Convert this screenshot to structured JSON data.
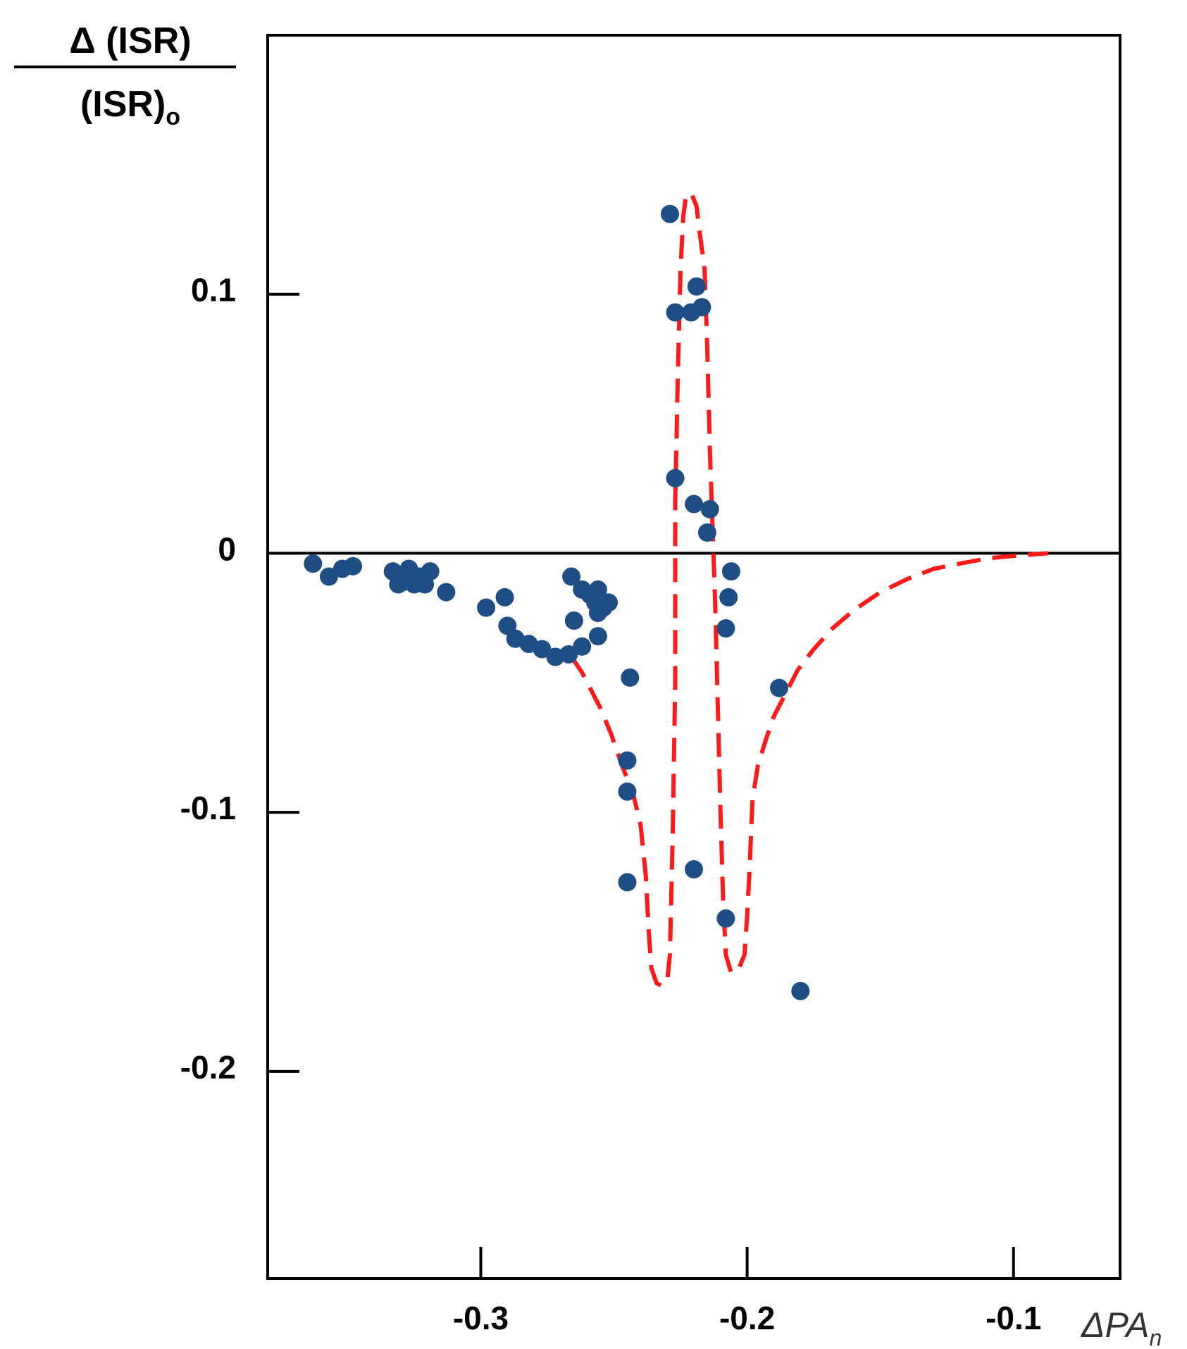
{
  "chart_data": {
    "type": "scatter",
    "title": "",
    "ylabel_numerator": "Δ (ISR)",
    "ylabel_denominator": "(ISR)",
    "ylabel_denominator_sub": "o",
    "xlabel": "ΔPA",
    "xlabel_sub": "n",
    "xlim": [
      -0.38,
      -0.06
    ],
    "ylim": [
      -0.28,
      0.2
    ],
    "x_ticks": [
      {
        "value": -0.3,
        "label": "-0.3"
      },
      {
        "value": -0.2,
        "label": "-0.2"
      },
      {
        "value": -0.1,
        "label": "-0.1"
      }
    ],
    "y_ticks": [
      {
        "value": 0.1,
        "label": "0.1"
      },
      {
        "value": 0,
        "label": "0"
      },
      {
        "value": -0.1,
        "label": "-0.1"
      },
      {
        "value": -0.2,
        "label": "-0.2"
      }
    ],
    "reference_line_y": 0,
    "grid": false,
    "legend": "none",
    "colors": {
      "points": "#1f4e84",
      "curve": "#ff1a1a",
      "axes": "#000000"
    },
    "series": [
      {
        "kind": "scatter",
        "points": [
          [
            -0.363,
            -0.004
          ],
          [
            -0.357,
            -0.009
          ],
          [
            -0.352,
            -0.006
          ],
          [
            -0.348,
            -0.005
          ],
          [
            -0.333,
            -0.007
          ],
          [
            -0.331,
            -0.012
          ],
          [
            -0.329,
            -0.011
          ],
          [
            -0.327,
            -0.006
          ],
          [
            -0.325,
            -0.012
          ],
          [
            -0.323,
            -0.009
          ],
          [
            -0.321,
            -0.012
          ],
          [
            -0.319,
            -0.007
          ],
          [
            -0.313,
            -0.015
          ],
          [
            -0.298,
            -0.021
          ],
          [
            -0.291,
            -0.017
          ],
          [
            -0.29,
            -0.028
          ],
          [
            -0.287,
            -0.033
          ],
          [
            -0.282,
            -0.035
          ],
          [
            -0.277,
            -0.037
          ],
          [
            -0.272,
            -0.04
          ],
          [
            -0.267,
            -0.039
          ],
          [
            -0.262,
            -0.036
          ],
          [
            -0.266,
            -0.009
          ],
          [
            -0.262,
            -0.014
          ],
          [
            -0.259,
            -0.016
          ],
          [
            -0.256,
            -0.014
          ],
          [
            -0.257,
            -0.019
          ],
          [
            -0.254,
            -0.021
          ],
          [
            -0.252,
            -0.019
          ],
          [
            -0.256,
            -0.023
          ],
          [
            -0.265,
            -0.026
          ],
          [
            -0.256,
            -0.032
          ],
          [
            -0.244,
            -0.048
          ],
          [
            -0.245,
            -0.08
          ],
          [
            -0.245,
            -0.092
          ],
          [
            -0.245,
            -0.127
          ],
          [
            -0.229,
            0.131
          ],
          [
            -0.227,
            0.093
          ],
          [
            -0.221,
            0.093
          ],
          [
            -0.219,
            0.103
          ],
          [
            -0.217,
            0.095
          ],
          [
            -0.227,
            0.029
          ],
          [
            -0.22,
            0.019
          ],
          [
            -0.214,
            0.017
          ],
          [
            -0.215,
            0.008
          ],
          [
            -0.206,
            -0.007
          ],
          [
            -0.207,
            -0.017
          ],
          [
            -0.208,
            -0.029
          ],
          [
            -0.22,
            -0.122
          ],
          [
            -0.208,
            -0.141
          ],
          [
            -0.188,
            -0.052
          ],
          [
            -0.18,
            -0.169
          ]
        ]
      },
      {
        "kind": "line",
        "style": "dashed",
        "points": [
          [
            -0.266,
            -0.04
          ],
          [
            -0.262,
            -0.046
          ],
          [
            -0.258,
            -0.054
          ],
          [
            -0.255,
            -0.06
          ],
          [
            -0.251,
            -0.07
          ],
          [
            -0.247,
            -0.082
          ],
          [
            -0.243,
            -0.092
          ],
          [
            -0.24,
            -0.105
          ],
          [
            -0.238,
            -0.125
          ],
          [
            -0.237,
            -0.145
          ],
          [
            -0.236,
            -0.16
          ],
          [
            -0.234,
            -0.166
          ],
          [
            -0.232,
            -0.167
          ],
          [
            -0.23,
            -0.165
          ],
          [
            -0.229,
            -0.155
          ],
          [
            -0.228,
            -0.11
          ],
          [
            -0.227,
            -0.05
          ],
          [
            -0.227,
            0.02
          ],
          [
            -0.226,
            0.07
          ],
          [
            -0.225,
            0.11
          ],
          [
            -0.224,
            0.13
          ],
          [
            -0.223,
            0.138
          ],
          [
            -0.221,
            0.139
          ],
          [
            -0.219,
            0.134
          ],
          [
            -0.218,
            0.125
          ],
          [
            -0.216,
            0.11
          ],
          [
            -0.215,
            0.08
          ],
          [
            -0.214,
            0.04
          ],
          [
            -0.213,
            0.01
          ],
          [
            -0.212,
            -0.02
          ],
          [
            -0.211,
            -0.06
          ],
          [
            -0.21,
            -0.1
          ],
          [
            -0.209,
            -0.135
          ],
          [
            -0.208,
            -0.155
          ],
          [
            -0.206,
            -0.162
          ],
          [
            -0.203,
            -0.16
          ],
          [
            -0.201,
            -0.155
          ],
          [
            -0.2,
            -0.14
          ],
          [
            -0.199,
            -0.12
          ],
          [
            -0.198,
            -0.095
          ],
          [
            -0.196,
            -0.082
          ],
          [
            -0.193,
            -0.072
          ],
          [
            -0.19,
            -0.063
          ],
          [
            -0.186,
            -0.055
          ],
          [
            -0.181,
            -0.045
          ],
          [
            -0.175,
            -0.037
          ],
          [
            -0.168,
            -0.029
          ],
          [
            -0.16,
            -0.022
          ],
          [
            -0.15,
            -0.015
          ],
          [
            -0.14,
            -0.01
          ],
          [
            -0.13,
            -0.006
          ],
          [
            -0.12,
            -0.004
          ],
          [
            -0.11,
            -0.002
          ],
          [
            -0.1,
            -0.001
          ],
          [
            -0.087,
            0.0
          ]
        ]
      }
    ]
  }
}
